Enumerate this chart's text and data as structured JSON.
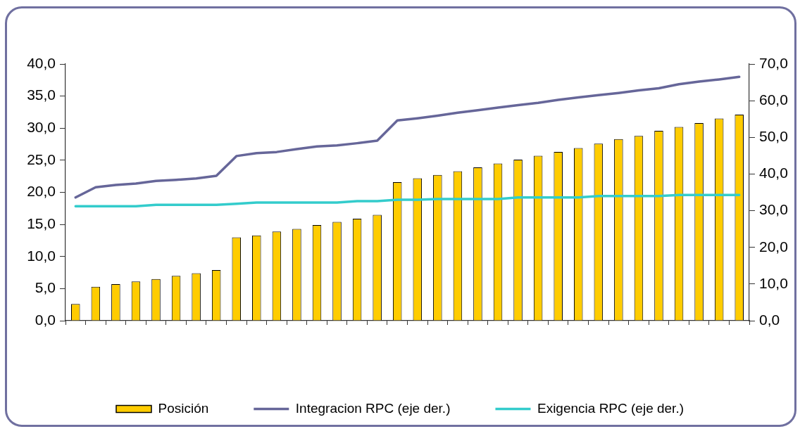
{
  "chart_data": {
    "type": "bar",
    "categories": [
      null,
      null,
      null,
      null,
      null,
      null,
      null,
      null,
      null,
      null,
      null,
      null,
      null,
      null,
      null,
      null,
      null,
      null,
      null,
      null,
      null,
      null,
      null,
      null,
      null,
      null,
      null,
      null,
      null,
      null,
      null,
      null,
      null,
      null
    ],
    "series": [
      {
        "name": "Posición",
        "color": "#ffcc00",
        "values": [
          2.6,
          5.3,
          5.7,
          6.1,
          6.5,
          7.0,
          7.4,
          7.9,
          13.0,
          13.3,
          13.9,
          14.3,
          14.9,
          15.4,
          15.9,
          16.5,
          21.6,
          22.2,
          22.7,
          23.3,
          23.9,
          24.5,
          25.1,
          25.7,
          26.3,
          26.9,
          27.6,
          28.3,
          28.8,
          29.6,
          30.2,
          30.8,
          31.5,
          32.1
        ]
      },
      {
        "name": "Integracion RPC (eje der.)",
        "type": "line",
        "axis": "y2",
        "color": "#666699",
        "values": [
          33.6,
          36.4,
          37.0,
          37.4,
          38.1,
          38.4,
          38.8,
          39.5,
          44.9,
          45.7,
          46.0,
          46.8,
          47.5,
          47.8,
          48.4,
          49.1,
          54.6,
          55.2,
          55.9,
          56.7,
          57.4,
          58.1,
          58.8,
          59.4,
          60.2,
          60.9,
          61.5,
          62.1,
          62.8,
          63.4,
          64.5,
          65.2,
          65.8,
          66.5
        ]
      },
      {
        "name": "Exigencia RPC (eje der.)",
        "type": "line",
        "axis": "y2",
        "color": "#33cccc",
        "values": [
          31.2,
          31.2,
          31.2,
          31.2,
          31.6,
          31.6,
          31.6,
          31.6,
          31.9,
          32.2,
          32.2,
          32.2,
          32.2,
          32.2,
          32.6,
          32.6,
          33.0,
          33.0,
          33.2,
          33.2,
          33.2,
          33.2,
          33.6,
          33.6,
          33.6,
          33.6,
          34.0,
          34.0,
          34.0,
          34.0,
          34.3,
          34.3,
          34.3,
          34.3
        ]
      }
    ],
    "ylim": [
      0,
      40
    ],
    "yticks": [
      {
        "value": 0,
        "label": "0,0"
      },
      {
        "value": 5,
        "label": "5,0"
      },
      {
        "value": 10,
        "label": "10,0"
      },
      {
        "value": 15,
        "label": "15,0"
      },
      {
        "value": 20,
        "label": "20,0"
      },
      {
        "value": 25,
        "label": "25,0"
      },
      {
        "value": 30,
        "label": "30,0"
      },
      {
        "value": 35,
        "label": "35,0"
      },
      {
        "value": 40,
        "label": "40,0"
      }
    ],
    "y2lim": [
      0,
      70
    ],
    "y2ticks": [
      {
        "value": 0,
        "label": "0,0"
      },
      {
        "value": 10,
        "label": "10,0"
      },
      {
        "value": 20,
        "label": "20,0"
      },
      {
        "value": 30,
        "label": "30,0"
      },
      {
        "value": 40,
        "label": "40,0"
      },
      {
        "value": 50,
        "label": "50,0"
      },
      {
        "value": 60,
        "label": "60,0"
      },
      {
        "value": 70,
        "label": "70,0"
      }
    ],
    "grid": false,
    "legend": "bottom",
    "marker": "none",
    "line_style": "solid"
  }
}
